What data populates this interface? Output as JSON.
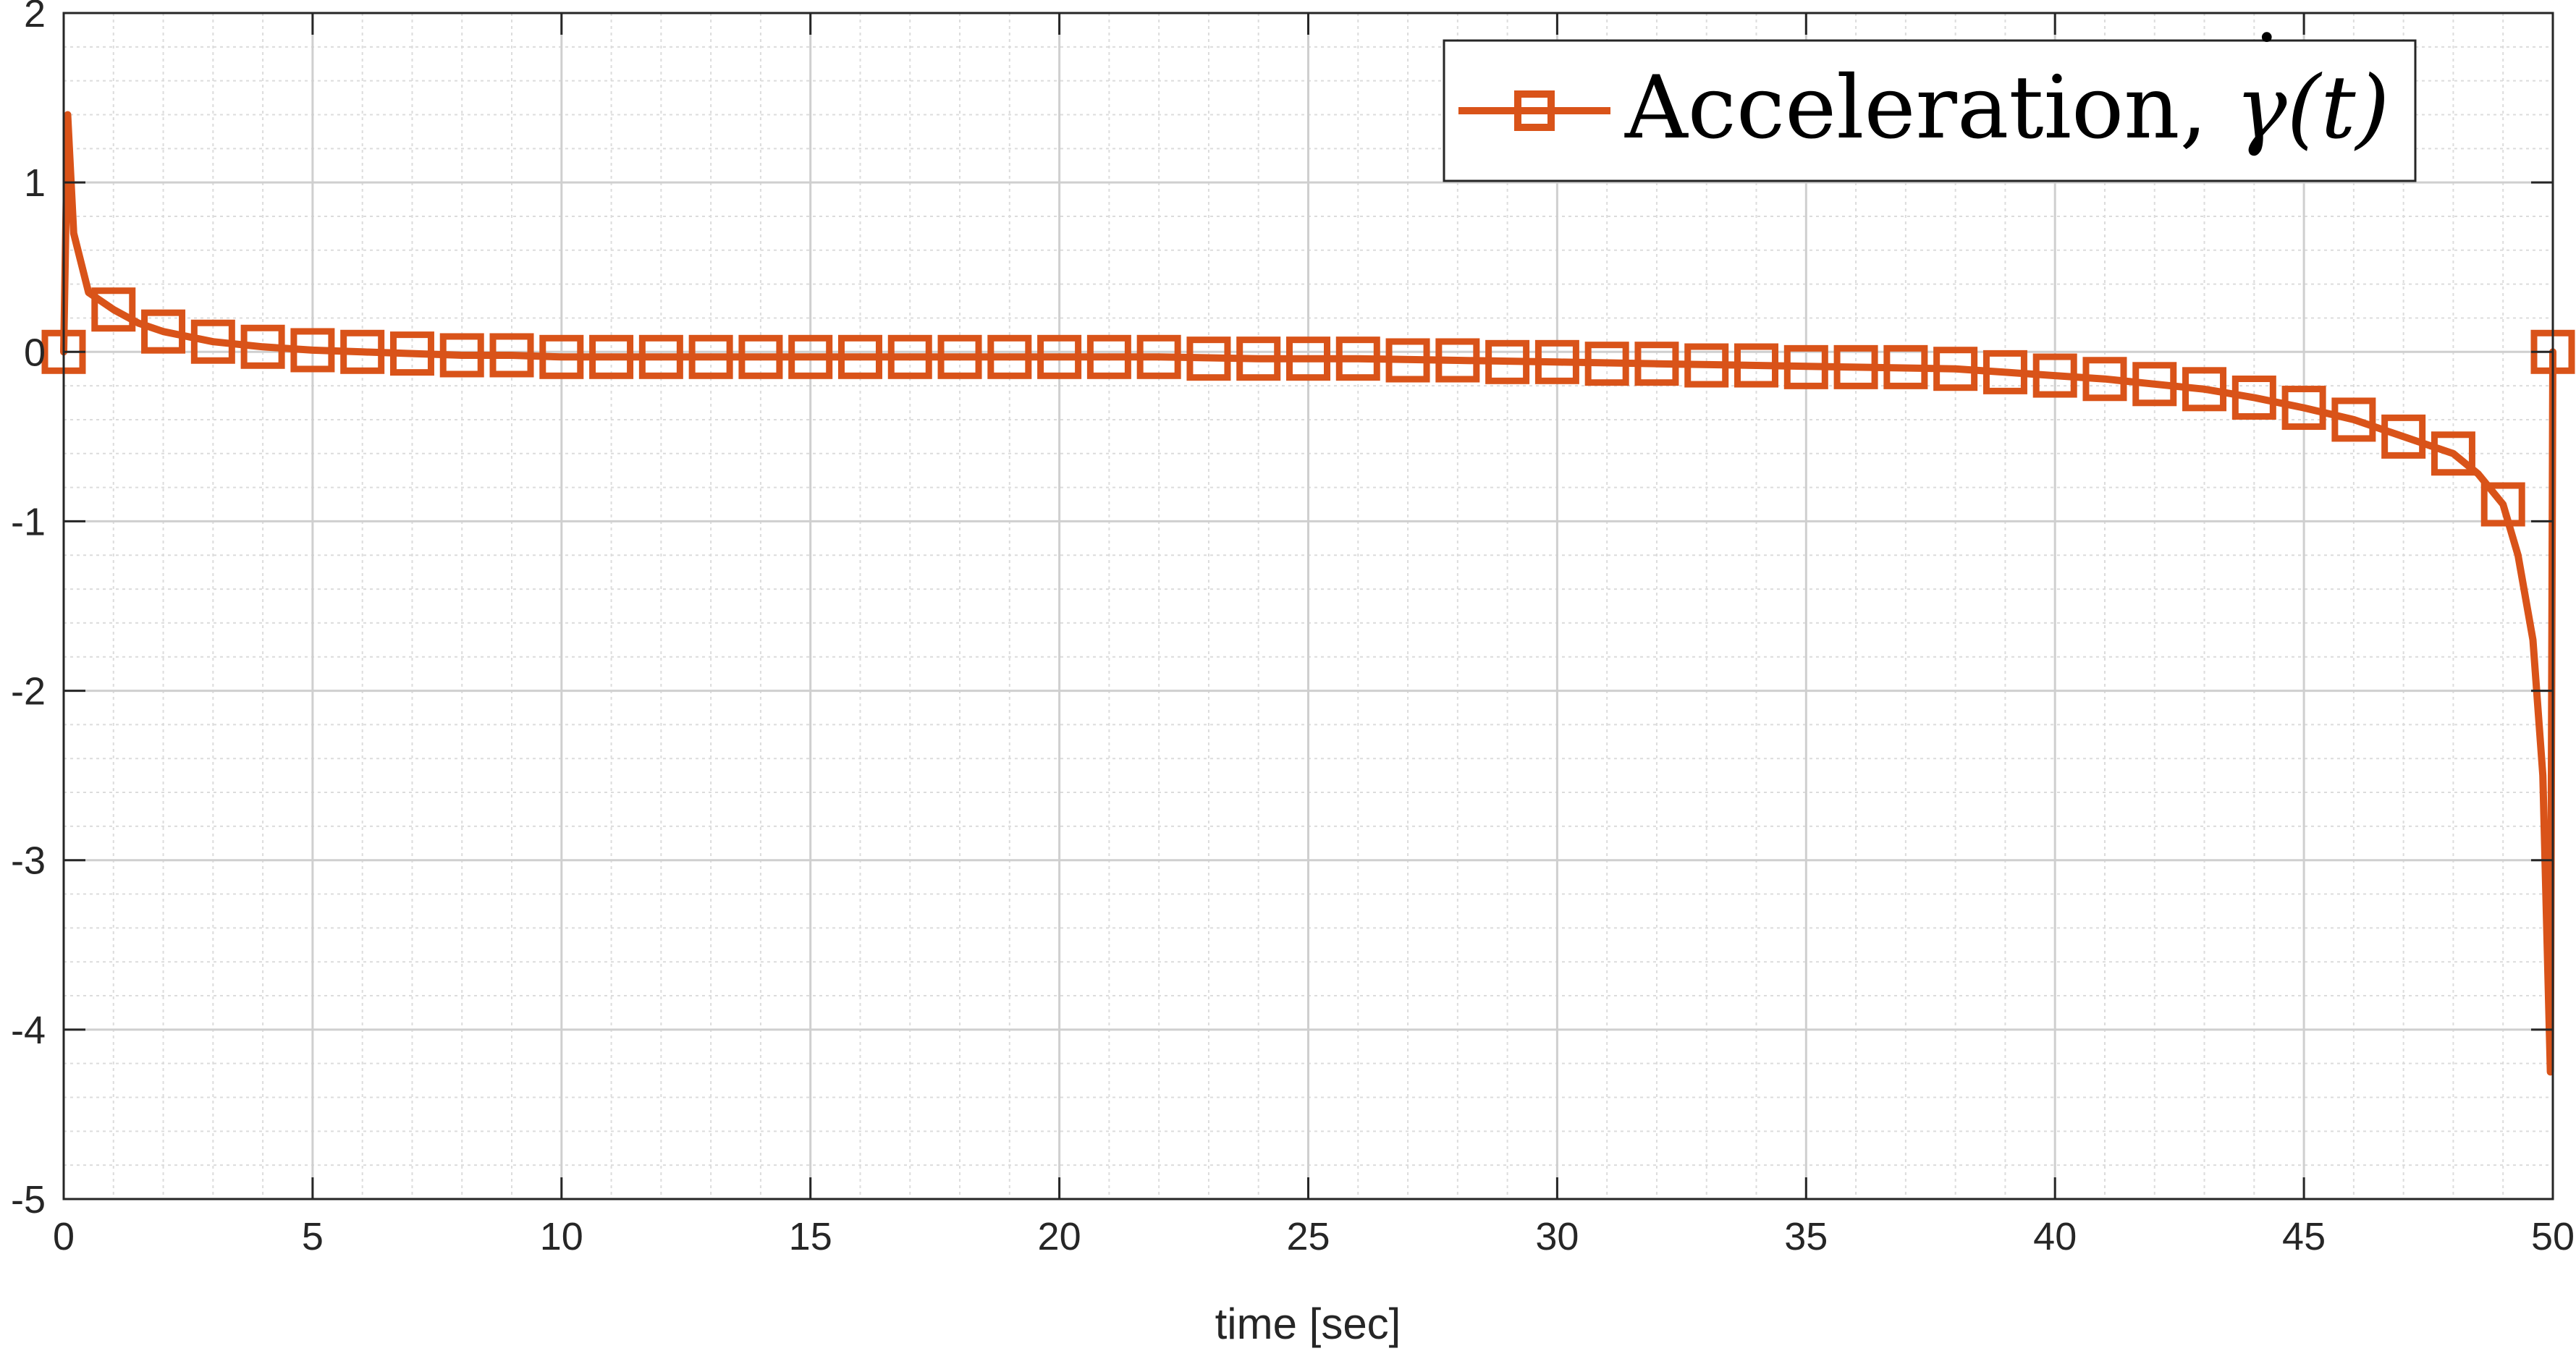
{
  "chart_data": {
    "type": "line",
    "title": "",
    "xlabel": "time [sec]",
    "ylabel": "",
    "xlim": [
      0,
      50
    ],
    "ylim": [
      -5,
      2
    ],
    "xticks": [
      0,
      5,
      10,
      15,
      20,
      25,
      30,
      35,
      40,
      45,
      50
    ],
    "xtick_labels": [
      "0",
      "5",
      "10",
      "15",
      "20",
      "25",
      "30",
      "35",
      "40",
      "45",
      "50"
    ],
    "yticks": [
      -5,
      -4,
      -3,
      -2,
      -1,
      0,
      1,
      2
    ],
    "ytick_labels": [
      "-5",
      "-4",
      "-3",
      "-2",
      "-1",
      "0",
      "1",
      "2"
    ],
    "grid": true,
    "minor_grid": true,
    "legend_position": "top-right",
    "series": [
      {
        "name_text": "Acceleration, ",
        "name_math_base": "γ",
        "name_math_dot": "˙",
        "name_math_arg": "(t)",
        "color": "#D95319",
        "marker": "square",
        "x": [
          0,
          0.08,
          0.2,
          0.5,
          1,
          1.5,
          2,
          3,
          4,
          5,
          6,
          7,
          8,
          9,
          10,
          12,
          14,
          16,
          18,
          20,
          22,
          24,
          26,
          28,
          30,
          32,
          34,
          36,
          38,
          39,
          40,
          41,
          42,
          43,
          44,
          45,
          46,
          47,
          48,
          48.5,
          49,
          49.3,
          49.6,
          49.8,
          49.95,
          50.0
        ],
        "y": [
          0.0,
          1.4,
          0.7,
          0.35,
          0.25,
          0.17,
          0.12,
          0.06,
          0.03,
          0.01,
          0.0,
          -0.01,
          -0.02,
          -0.02,
          -0.03,
          -0.03,
          -0.03,
          -0.03,
          -0.03,
          -0.03,
          -0.03,
          -0.04,
          -0.04,
          -0.05,
          -0.06,
          -0.07,
          -0.08,
          -0.09,
          -0.1,
          -0.12,
          -0.14,
          -0.16,
          -0.19,
          -0.22,
          -0.27,
          -0.33,
          -0.4,
          -0.5,
          -0.6,
          -0.72,
          -0.9,
          -1.2,
          -1.7,
          -2.5,
          -4.25,
          0.0
        ],
        "marker_x": [
          0,
          1,
          2,
          3,
          4,
          5,
          6,
          7,
          8,
          9,
          10,
          11,
          12,
          13,
          14,
          15,
          16,
          17,
          18,
          19,
          20,
          21,
          22,
          23,
          24,
          25,
          26,
          27,
          28,
          29,
          30,
          31,
          32,
          33,
          34,
          35,
          36,
          37,
          38,
          39,
          40,
          41,
          42,
          43,
          44,
          45,
          46,
          47,
          48,
          49,
          50
        ],
        "marker_y": [
          0.0,
          0.25,
          0.12,
          0.06,
          0.03,
          0.01,
          0.0,
          -0.01,
          -0.02,
          -0.02,
          -0.03,
          -0.03,
          -0.03,
          -0.03,
          -0.03,
          -0.03,
          -0.03,
          -0.03,
          -0.03,
          -0.03,
          -0.03,
          -0.03,
          -0.03,
          -0.04,
          -0.04,
          -0.04,
          -0.04,
          -0.05,
          -0.05,
          -0.06,
          -0.06,
          -0.07,
          -0.07,
          -0.08,
          -0.08,
          -0.09,
          -0.09,
          -0.09,
          -0.1,
          -0.12,
          -0.14,
          -0.16,
          -0.19,
          -0.22,
          -0.27,
          -0.33,
          -0.4,
          -0.5,
          -0.6,
          -0.9,
          0.0
        ]
      }
    ]
  }
}
